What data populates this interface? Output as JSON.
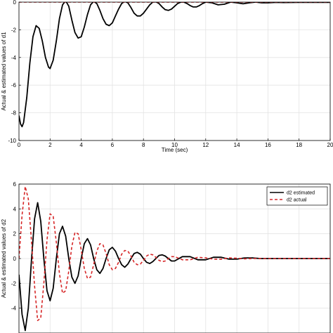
{
  "chart_data": [
    {
      "type": "line",
      "xlabel": "Time (sec)",
      "ylabel": "Actual & estimated values of d1",
      "xlim": [
        0,
        20
      ],
      "ylim": [
        -10,
        0
      ],
      "xticks": [
        "0",
        "2",
        "4",
        "6",
        "8",
        "10",
        "12",
        "14",
        "16",
        "18",
        "20"
      ],
      "yticks": [
        "0",
        "-2",
        "-4",
        "-6",
        "-8",
        "-10"
      ],
      "grid": true,
      "legend": false,
      "series": [
        {
          "color": "#000000",
          "style": "solid",
          "x": [
            0,
            0.1,
            0.2,
            0.3,
            0.5,
            0.7,
            0.9,
            1.1,
            1.3,
            1.5,
            1.7,
            1.9,
            2.0,
            2.2,
            2.4,
            2.6,
            2.8,
            3.0,
            3.2,
            3.4,
            3.6,
            3.8,
            4.0,
            4.2,
            4.4,
            4.6,
            4.8,
            5.0,
            5.2,
            5.4,
            5.6,
            5.8,
            6.0,
            6.2,
            6.4,
            6.6,
            6.8,
            7.0,
            7.2,
            7.4,
            7.6,
            7.8,
            8.0,
            8.2,
            8.4,
            8.6,
            8.8,
            9.0,
            9.2,
            9.4,
            9.6,
            9.8,
            10.0,
            10.2,
            10.4,
            10.6,
            10.8,
            11.0,
            11.2,
            11.4,
            11.6,
            11.8,
            12.0,
            12.4,
            12.8,
            13.2,
            13.6,
            14.0,
            14.4,
            14.8,
            15.2,
            15.6,
            16.0,
            16.5,
            17,
            18,
            19,
            20
          ],
          "y": [
            -8.2,
            -8.8,
            -9.0,
            -8.7,
            -6.9,
            -4.4,
            -2.5,
            -1.7,
            -1.9,
            -2.8,
            -4.0,
            -4.7,
            -4.8,
            -4.2,
            -2.8,
            -1.2,
            -0.2,
            0.1,
            -0.3,
            -1.3,
            -2.2,
            -2.6,
            -2.5,
            -1.8,
            -0.9,
            -0.2,
            0.05,
            -0.1,
            -0.6,
            -1.2,
            -1.6,
            -1.7,
            -1.5,
            -1.0,
            -0.5,
            -0.1,
            0.05,
            -0.05,
            -0.4,
            -0.8,
            -1.0,
            -1.0,
            -0.8,
            -0.5,
            -0.2,
            0.0,
            0.02,
            -0.1,
            -0.35,
            -0.55,
            -0.6,
            -0.5,
            -0.3,
            -0.1,
            0.0,
            0.0,
            -0.1,
            -0.25,
            -0.35,
            -0.35,
            -0.25,
            -0.1,
            0.0,
            -0.05,
            -0.2,
            -0.15,
            0.0,
            -0.05,
            -0.12,
            -0.05,
            0.0,
            -0.05,
            -0.05,
            -0.02,
            -0.03,
            -0.02,
            -0.02,
            -0.02
          ]
        },
        {
          "color": "#d62728",
          "style": "dashed",
          "x": [
            0,
            20
          ],
          "y": [
            0,
            0
          ]
        }
      ]
    },
    {
      "type": "line",
      "xlabel": "",
      "ylabel": "Actual & estimated values of d2",
      "xlim": [
        0,
        20
      ],
      "ylim": [
        -6,
        6
      ],
      "xticks": [],
      "yticks": [
        "6",
        "4",
        "2",
        "0",
        "-2",
        "-4"
      ],
      "grid": true,
      "legend": true,
      "legend_position": "top-right",
      "series": [
        {
          "name": "d2 estimated",
          "color": "#000000",
          "style": "solid",
          "x": [
            0,
            0.2,
            0.4,
            0.6,
            0.8,
            1.0,
            1.2,
            1.4,
            1.6,
            1.8,
            2.0,
            2.2,
            2.4,
            2.6,
            2.8,
            3.0,
            3.2,
            3.4,
            3.6,
            3.8,
            4.0,
            4.2,
            4.4,
            4.6,
            4.8,
            5.0,
            5.2,
            5.4,
            5.6,
            5.8,
            6.0,
            6.2,
            6.4,
            6.6,
            6.8,
            7.0,
            7.2,
            7.4,
            7.6,
            7.8,
            8.0,
            8.2,
            8.4,
            8.6,
            8.8,
            9.0,
            9.2,
            9.4,
            9.6,
            9.8,
            10.0,
            10.5,
            11.0,
            11.5,
            12.0,
            12.5,
            13.0,
            13.5,
            14.0,
            14.5,
            15.0,
            15.5,
            16.0,
            17,
            18,
            19,
            20
          ],
          "y": [
            -1.3,
            -4.5,
            -5.8,
            -4.0,
            -0.2,
            3.2,
            4.5,
            3.0,
            0.0,
            -2.6,
            -3.4,
            -2.4,
            0.0,
            2.0,
            2.6,
            1.8,
            0.0,
            -1.5,
            -2.0,
            -1.4,
            0.0,
            1.2,
            1.6,
            1.1,
            0.0,
            -0.9,
            -1.2,
            -0.8,
            0.0,
            0.7,
            0.9,
            0.6,
            0.0,
            -0.5,
            -0.7,
            -0.45,
            0.0,
            0.4,
            0.5,
            0.35,
            0.0,
            -0.3,
            -0.4,
            -0.25,
            0.0,
            0.25,
            0.3,
            0.2,
            0.0,
            -0.2,
            -0.2,
            0.15,
            0.15,
            -0.1,
            -0.1,
            0.1,
            0.1,
            -0.05,
            -0.05,
            0.05,
            0.05,
            0.0,
            0.0,
            0.0,
            0.0,
            0.0,
            0.0
          ]
        },
        {
          "name": "d2 actual",
          "color": "#d62728",
          "style": "dashed",
          "x": [
            0,
            0.2,
            0.4,
            0.6,
            0.8,
            1.0,
            1.2,
            1.4,
            1.6,
            1.8,
            2.0,
            2.2,
            2.4,
            2.6,
            2.8,
            3.0,
            3.2,
            3.4,
            3.6,
            3.8,
            4.0,
            4.2,
            4.4,
            4.6,
            4.8,
            5.0,
            5.2,
            5.4,
            5.6,
            5.8,
            6.0,
            6.2,
            6.4,
            6.6,
            6.8,
            7.0,
            7.2,
            7.4,
            7.6,
            7.8,
            8.0,
            8.2,
            8.4,
            8.6,
            8.8,
            9.0,
            9.2,
            9.4,
            9.6,
            9.8,
            10.0,
            10.5,
            11.0,
            11.5,
            12.0,
            12.5,
            13.0,
            13.5,
            14.0,
            14.5,
            15.0,
            15.5,
            16.0,
            17,
            18,
            19,
            20
          ],
          "y": [
            0.0,
            3.5,
            5.8,
            4.8,
            1.5,
            -2.2,
            -5.0,
            -4.8,
            -2.0,
            1.5,
            3.6,
            3.4,
            1.3,
            -1.2,
            -2.8,
            -2.6,
            -1.0,
            1.0,
            2.1,
            2.0,
            0.7,
            -0.8,
            -1.6,
            -1.5,
            -0.5,
            0.6,
            1.2,
            1.1,
            0.4,
            -0.5,
            -0.9,
            -0.8,
            -0.3,
            0.35,
            0.65,
            0.6,
            0.2,
            -0.3,
            -0.5,
            -0.45,
            -0.15,
            0.2,
            0.35,
            0.3,
            0.1,
            -0.15,
            -0.25,
            -0.2,
            0.0,
            0.15,
            0.15,
            -0.1,
            -0.1,
            0.1,
            0.05,
            -0.05,
            -0.05,
            0.05,
            0.02,
            -0.02,
            0.0,
            0.0,
            0.0,
            0.0,
            0.0,
            0.0,
            0.0
          ]
        }
      ]
    }
  ]
}
